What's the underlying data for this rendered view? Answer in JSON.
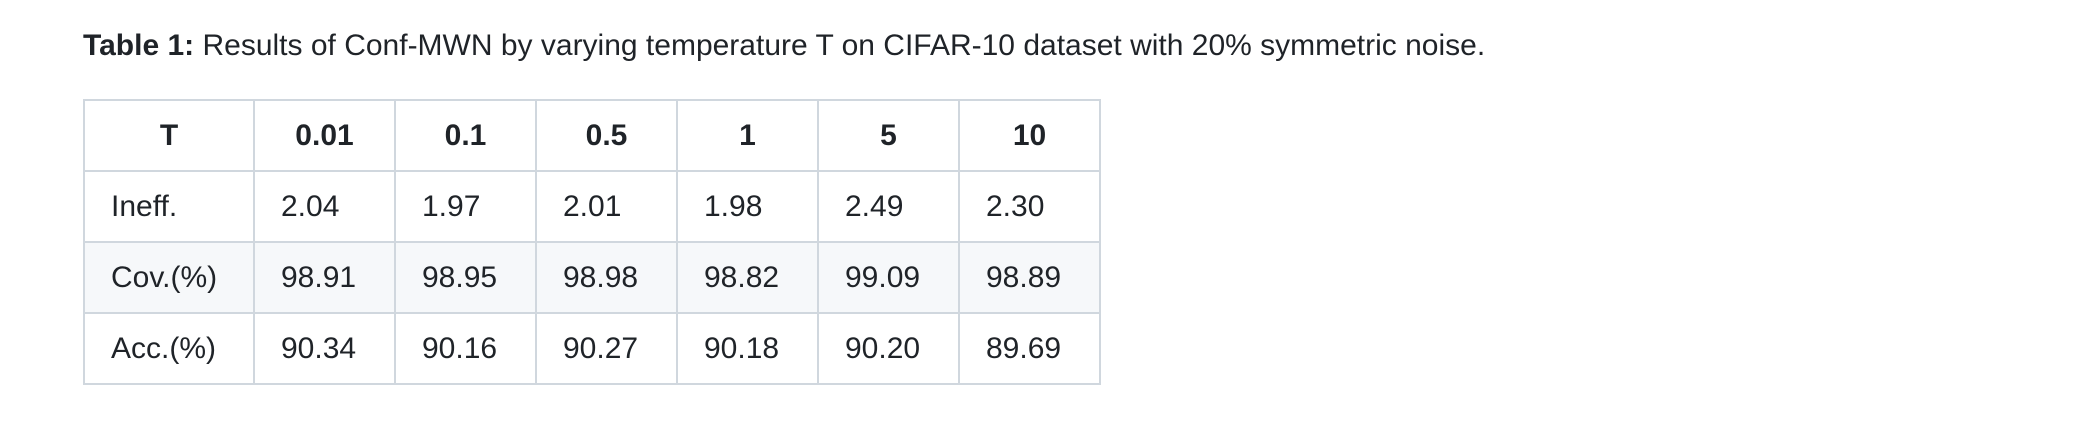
{
  "caption": {
    "label": "Table 1:",
    "text": " Results of Conf-MWN by varying temperature T on CIFAR-10 dataset with 20% symmetric noise."
  },
  "table": {
    "header": [
      "T",
      "0.01",
      "0.1",
      "0.5",
      "1",
      "5",
      "10"
    ],
    "rows": [
      {
        "label": "Ineff.",
        "values": [
          "2.04",
          "1.97",
          "2.01",
          "1.98",
          "2.49",
          "2.30"
        ]
      },
      {
        "label": "Cov.(%)",
        "values": [
          "98.91",
          "98.95",
          "98.98",
          "98.82",
          "99.09",
          "98.89"
        ]
      },
      {
        "label": "Acc.(%)",
        "values": [
          "90.34",
          "90.16",
          "90.27",
          "90.18",
          "90.20",
          "89.69"
        ]
      }
    ]
  },
  "colors": {
    "border": "#d0d7de",
    "stripe": "#f6f8fa",
    "text": "#1f2328"
  }
}
